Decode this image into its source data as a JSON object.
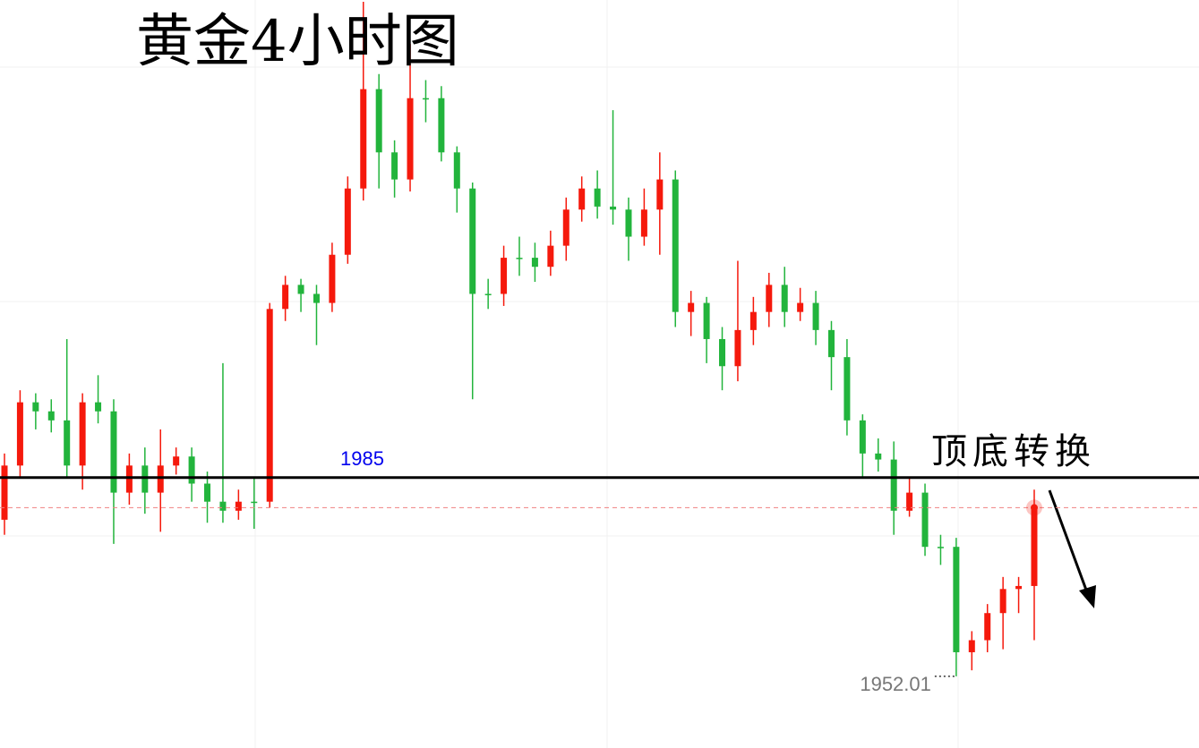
{
  "chart_data": {
    "type": "candlestick",
    "title": "黄金4小时图",
    "annotation": "顶底转换",
    "level": 1985,
    "level_color": "#000000",
    "level_label_color": "#0000ee",
    "up_color": "#f5190c",
    "down_color": "#22b43c",
    "last_price_color": "#f08080",
    "ylim": [
      1940.1,
      2064.3
    ],
    "open": [
      1978,
      1987,
      1997.5,
      1996,
      1994.5,
      1987,
      1997.5,
      1996,
      1982.5,
      1987,
      1982.5,
      1987,
      1988.5,
      1984,
      1981,
      1979.5,
      1981,
      1981,
      2013,
      2017,
      2015.5,
      2014,
      2022,
      2033,
      2049.5,
      2039,
      2034.5,
      2048,
      2048,
      2039,
      2033,
      2015.5,
      2015.5,
      2021.5,
      2021.5,
      2020,
      2023.5,
      2029.5,
      2033,
      2030,
      2029.5,
      2025,
      2029.5,
      2034.5,
      2012.5,
      2014,
      2008,
      2003.5,
      2009.5,
      2012.5,
      2017,
      2012.5,
      2014,
      2009.5,
      2005,
      1994.5,
      1989,
      1988,
      1979.5,
      1982.5,
      1973.5,
      1973.5,
      1956,
      1958,
      1962.5,
      1966.5,
      1967
    ],
    "high": [
      1989,
      1999.5,
      1999,
      1998,
      2008,
      1999,
      2002,
      1998,
      1989,
      1990,
      1993,
      1990,
      1990,
      1986,
      2004,
      1983,
      1985,
      2014,
      2018.5,
      2018,
      2017,
      2024,
      2035,
      2064,
      2052,
      2041,
      2057,
      2051,
      2050,
      2040,
      2034,
      2018,
      2023.5,
      2025,
      2024,
      2026,
      2031.5,
      2035,
      2036,
      2046,
      2031.5,
      2033,
      2039,
      2036,
      2016,
      2015,
      2010,
      2021,
      2015,
      2019,
      2020,
      2016.5,
      2016,
      2011,
      2008,
      1995.5,
      1991.5,
      1991,
      1985,
      1984,
      1975.5,
      1975,
      1959.5,
      1964,
      1968.5,
      1968.5,
      1983
    ],
    "low": [
      1975.5,
      1985,
      1993,
      1992.5,
      1985,
      1983,
      1994,
      1974,
      1980.5,
      1979,
      1976,
      1985.5,
      1981,
      1977.5,
      1977.5,
      1978,
      1976.5,
      1980,
      2011,
      2012.5,
      2007,
      2012.5,
      2020.5,
      2031,
      2033,
      2031.5,
      2032.5,
      2044,
      2037.5,
      2029,
      1998,
      2013,
      2013.5,
      2018.5,
      2017.5,
      2018.5,
      2021,
      2027.5,
      2028,
      2027,
      2021,
      2023.5,
      2022,
      2010,
      2008.5,
      2004,
      1999.5,
      2001,
      2007,
      2010,
      2010,
      2011,
      2007,
      1999.5,
      1992,
      1985,
      1986,
      1975.5,
      1978.5,
      1972,
      1970.5,
      1952.01,
      1953,
      1956,
      1956.5,
      1962.5,
      1958
    ],
    "close": [
      1987,
      1997.5,
      1996,
      1994.5,
      1987,
      1997.5,
      1996,
      1982.5,
      1987,
      1982.5,
      1987,
      1988.5,
      1984,
      1981,
      1979.5,
      1981,
      1981,
      2013,
      2017,
      2015.5,
      2014,
      2022,
      2033,
      2049.5,
      2039,
      2034.5,
      2048,
      2048,
      2039,
      2033,
      2015.5,
      2015.5,
      2021.5,
      2021.5,
      2020,
      2023.5,
      2029.5,
      2033,
      2030,
      2029.5,
      2025,
      2029.5,
      2034.5,
      2012.5,
      2014,
      2008,
      2003.5,
      2009.5,
      2012.5,
      2017,
      2012.5,
      2014,
      2009.5,
      2005,
      1994.5,
      1989,
      1988,
      1979.5,
      1982.5,
      1973.5,
      1973.5,
      1956,
      1958,
      1962.5,
      1966.5,
      1967,
      1980
    ]
  }
}
